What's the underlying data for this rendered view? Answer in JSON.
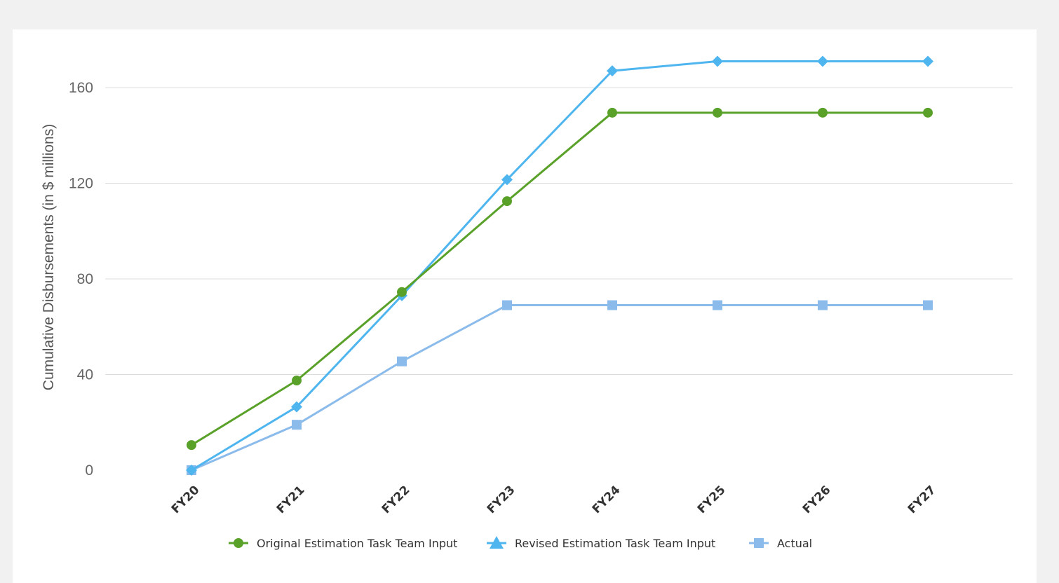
{
  "colors": {
    "background": "#f1f1f1",
    "card": "#ffffff",
    "gridline": "#dcdcdc",
    "original": "#5aa12a",
    "revised": "#4fb5ef",
    "actual": "#8bbbeb"
  },
  "chart_data": {
    "type": "line",
    "title": "",
    "xlabel": "",
    "ylabel": "Cumulative Disbursements (in $ millions)",
    "categories": [
      "FY20",
      "FY21",
      "FY22",
      "FY23",
      "FY24",
      "FY25",
      "FY26",
      "FY27"
    ],
    "ylim": [
      0,
      176
    ],
    "yticks": [
      0,
      40,
      80,
      120,
      160
    ],
    "grid": true,
    "legend_position": "bottom",
    "series": [
      {
        "name": "Original Estimation Task Team Input",
        "marker": "circle",
        "color": "#5aa12a",
        "values": [
          10.5,
          37.5,
          74.5,
          112.5,
          149.5,
          149.5,
          149.5,
          149.5
        ]
      },
      {
        "name": "Revised Estimation Task Team Input",
        "marker": "diamond",
        "legend_marker": "triangle",
        "color": "#4fb5ef",
        "values": [
          0,
          26.5,
          73,
          121.5,
          167,
          171,
          171,
          171
        ]
      },
      {
        "name": "Actual",
        "marker": "square",
        "color": "#8bbbeb",
        "values": [
          0,
          19,
          45.5,
          69,
          69,
          69,
          69,
          69
        ]
      }
    ]
  }
}
